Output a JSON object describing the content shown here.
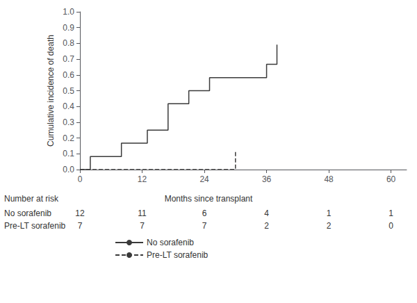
{
  "chart_data": {
    "type": "line",
    "xlabel": "Months since transplant",
    "ylabel": "Cumulative incidence of death",
    "series": [
      {
        "name": "No sorafenib",
        "color": "#3a3a3a",
        "line_style": "solid",
        "x": [
          0,
          2,
          2,
          8,
          8,
          13,
          13,
          17,
          17,
          21,
          21,
          25,
          25,
          36,
          36,
          38,
          38
        ],
        "values": [
          0,
          0,
          0.083,
          0.083,
          0.167,
          0.167,
          0.25,
          0.25,
          0.417,
          0.417,
          0.5,
          0.5,
          0.583,
          0.583,
          0.667,
          0.667,
          0.792
        ]
      },
      {
        "name": "Pre-LT sorafenib",
        "color": "#3a3a3a",
        "line_style": "dashed",
        "x": [
          0,
          30,
          30
        ],
        "values": [
          0,
          0,
          0.125
        ]
      }
    ],
    "xlim": [
      0,
      63
    ],
    "ylim": [
      0,
      1.0
    ],
    "xticks": [
      0,
      12,
      24,
      36,
      48,
      60
    ],
    "yticks": [
      {
        "value": 0.0,
        "label": "0.0"
      },
      0.1,
      0.2,
      0.3,
      0.4,
      0.5,
      0.6,
      0.7,
      0.8,
      0.9,
      {
        "value": 1.0,
        "label": "1.0"
      }
    ],
    "grid": false,
    "legend": "bottom",
    "risk_table": {
      "title": "Number at risk",
      "x": [
        0,
        12,
        24,
        36,
        48,
        60
      ],
      "rows": [
        {
          "name": "No sorafenib",
          "values": [
            12,
            11,
            6,
            4,
            1,
            1
          ]
        },
        {
          "name": "Pre-LT sorafenib",
          "values": [
            7,
            7,
            7,
            2,
            2,
            0
          ]
        }
      ]
    }
  }
}
